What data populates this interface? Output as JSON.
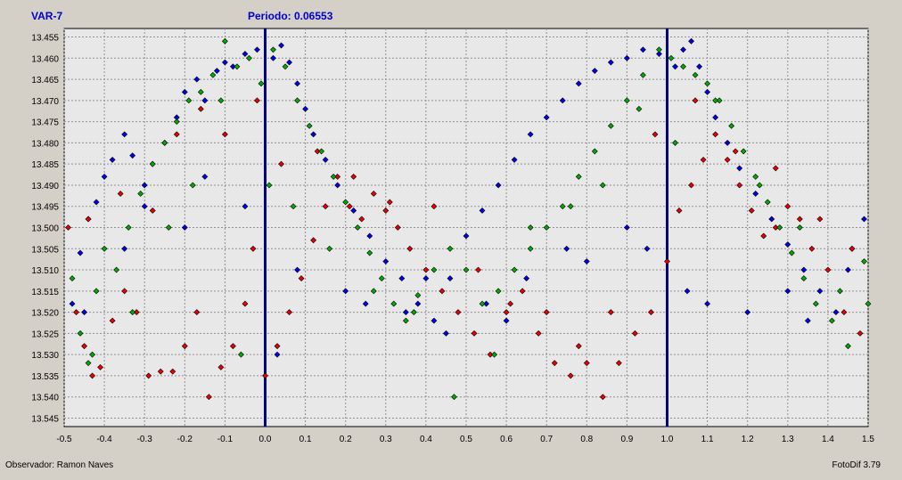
{
  "header": {
    "star_name": "VAR-7",
    "period_text": "Periodo: 0.06553"
  },
  "footer": {
    "observer_text": "Observador: Ramon Naves",
    "software_text": "FotoDif 3.79"
  },
  "chart_data": {
    "type": "scatter",
    "title": "",
    "xlabel": "",
    "ylabel": "",
    "xlim": [
      -0.5,
      1.5
    ],
    "ylim": [
      13.547,
      13.453
    ],
    "y_inverted": true,
    "grid": true,
    "x_ticks": [
      -0.5,
      -0.4,
      -0.3,
      -0.2,
      -0.1,
      0.0,
      0.1,
      0.2,
      0.3,
      0.4,
      0.5,
      0.6,
      0.7,
      0.8,
      0.9,
      1.0,
      1.1,
      1.2,
      1.3,
      1.4,
      1.5
    ],
    "x_tick_labels": [
      "-0.5",
      "-0.4",
      "-0.3",
      "-0.2",
      "-0.1",
      "0.0",
      "0.1",
      "0.2",
      "0.3",
      "0.4",
      "0.5",
      "0.6",
      "0.7",
      "0.8",
      "0.9",
      "1.0",
      "1.1",
      "1.2",
      "1.3",
      "1.4",
      "1.5"
    ],
    "y_ticks": [
      13.455,
      13.46,
      13.465,
      13.47,
      13.475,
      13.48,
      13.485,
      13.49,
      13.495,
      13.5,
      13.505,
      13.51,
      13.515,
      13.52,
      13.525,
      13.53,
      13.535,
      13.54,
      13.545
    ],
    "y_tick_labels": [
      "13.455",
      "13.460",
      "13.465",
      "13.470",
      "13.475",
      "13.480",
      "13.485",
      "13.490",
      "13.495",
      "13.500",
      "13.505",
      "13.510",
      "13.515",
      "13.520",
      "13.525",
      "13.530",
      "13.535",
      "13.540",
      "13.545"
    ],
    "vlines": [
      0.0,
      1.0
    ],
    "colors": {
      "background": "#d4d0c8",
      "plot_bg": "#e8e8e8",
      "grid": "#909090",
      "vline": "#000080",
      "title": "#0000cc"
    },
    "series": [
      {
        "color": "#0000ee",
        "x": [
          -0.48,
          -0.46,
          -0.44,
          -0.42,
          -0.4,
          -0.38,
          -0.35,
          -0.33,
          -0.3,
          -0.28,
          -0.25,
          -0.22,
          -0.2,
          -0.17,
          -0.15,
          -0.12,
          -0.1,
          -0.08,
          -0.05,
          -0.02,
          0.02,
          0.04,
          0.06,
          0.08,
          0.1,
          0.12,
          0.15,
          0.18,
          0.22,
          0.26,
          0.3,
          0.34,
          0.38,
          0.42,
          0.46,
          0.5,
          0.54,
          0.58,
          0.62,
          0.66,
          0.7,
          0.74,
          0.78,
          0.82,
          0.86,
          0.9,
          0.94,
          0.98,
          1.02,
          1.04,
          1.06,
          1.08,
          1.1,
          1.12,
          1.15,
          1.18,
          1.22,
          1.26,
          1.3,
          1.34,
          1.38,
          1.42,
          1.46,
          1.49,
          -0.45,
          -0.3,
          -0.15,
          0.03,
          0.2,
          0.35,
          0.45,
          0.55,
          0.65,
          0.8,
          0.95,
          1.05,
          1.2,
          1.35,
          1.45,
          -0.35,
          -0.2,
          -0.05,
          0.08,
          0.25,
          0.4,
          0.6,
          0.75,
          0.9,
          1.1,
          1.3
        ],
        "y": [
          13.518,
          13.506,
          13.498,
          13.494,
          13.488,
          13.484,
          13.478,
          13.483,
          13.49,
          13.485,
          13.48,
          13.474,
          13.468,
          13.465,
          13.47,
          13.463,
          13.461,
          13.462,
          13.459,
          13.458,
          13.46,
          13.457,
          13.461,
          13.466,
          13.472,
          13.478,
          13.484,
          13.49,
          13.496,
          13.502,
          13.508,
          13.512,
          13.518,
          13.522,
          13.512,
          13.502,
          13.496,
          13.49,
          13.484,
          13.478,
          13.474,
          13.47,
          13.466,
          13.463,
          13.461,
          13.46,
          13.458,
          13.459,
          13.462,
          13.458,
          13.456,
          13.462,
          13.468,
          13.474,
          13.48,
          13.486,
          13.492,
          13.498,
          13.504,
          13.51,
          13.515,
          13.52,
          13.505,
          13.498,
          13.52,
          13.495,
          13.488,
          13.53,
          13.515,
          13.52,
          13.525,
          13.518,
          13.512,
          13.508,
          13.505,
          13.515,
          13.52,
          13.522,
          13.51,
          13.505,
          13.5,
          13.495,
          13.51,
          13.518,
          13.512,
          13.522,
          13.505,
          13.5,
          13.518,
          13.515
        ]
      },
      {
        "color": "#ee0000",
        "x": [
          -0.49,
          -0.47,
          -0.45,
          -0.43,
          -0.41,
          -0.38,
          -0.35,
          -0.32,
          -0.29,
          -0.26,
          -0.23,
          -0.2,
          -0.17,
          -0.14,
          -0.11,
          -0.08,
          -0.05,
          -0.03,
          0.0,
          0.03,
          0.06,
          0.09,
          0.12,
          0.15,
          0.18,
          0.21,
          0.24,
          0.27,
          0.3,
          0.33,
          0.36,
          0.4,
          0.44,
          0.48,
          0.52,
          0.56,
          0.6,
          0.64,
          0.68,
          0.72,
          0.76,
          0.8,
          0.84,
          0.88,
          0.92,
          0.96,
          1.0,
          1.03,
          1.06,
          1.09,
          1.12,
          1.15,
          1.18,
          1.21,
          1.24,
          1.27,
          1.3,
          1.33,
          1.36,
          1.4,
          1.44,
          1.48,
          -0.44,
          -0.36,
          -0.28,
          -0.22,
          -0.16,
          -0.1,
          -0.02,
          0.04,
          0.13,
          0.22,
          0.31,
          0.42,
          0.53,
          0.61,
          0.7,
          0.78,
          0.86,
          0.97,
          1.07,
          1.17,
          1.27,
          1.38,
          1.46
        ],
        "y": [
          13.5,
          13.52,
          13.528,
          13.535,
          13.533,
          13.522,
          13.515,
          13.52,
          13.535,
          13.534,
          13.534,
          13.528,
          13.52,
          13.54,
          13.533,
          13.528,
          13.518,
          13.505,
          13.535,
          13.528,
          13.52,
          13.512,
          13.503,
          13.495,
          13.488,
          13.495,
          13.498,
          13.492,
          13.496,
          13.5,
          13.505,
          13.51,
          13.515,
          13.52,
          13.525,
          13.53,
          13.52,
          13.515,
          13.525,
          13.532,
          13.535,
          13.532,
          13.54,
          13.532,
          13.525,
          13.52,
          13.508,
          13.496,
          13.49,
          13.484,
          13.478,
          13.484,
          13.49,
          13.496,
          13.502,
          13.5,
          13.495,
          13.498,
          13.505,
          13.51,
          13.52,
          13.525,
          13.498,
          13.492,
          13.496,
          13.478,
          13.472,
          13.478,
          13.47,
          13.485,
          13.482,
          13.488,
          13.494,
          13.495,
          13.51,
          13.518,
          13.52,
          13.528,
          13.52,
          13.478,
          13.47,
          13.482,
          13.486,
          13.498,
          13.505
        ]
      },
      {
        "color": "#00aa00",
        "x": [
          -0.48,
          -0.46,
          -0.44,
          -0.42,
          -0.4,
          -0.37,
          -0.34,
          -0.31,
          -0.28,
          -0.25,
          -0.22,
          -0.19,
          -0.16,
          -0.13,
          -0.1,
          -0.07,
          -0.04,
          -0.01,
          0.02,
          0.05,
          0.08,
          0.11,
          0.14,
          0.17,
          0.2,
          0.23,
          0.26,
          0.29,
          0.32,
          0.35,
          0.38,
          0.42,
          0.46,
          0.5,
          0.54,
          0.58,
          0.62,
          0.66,
          0.7,
          0.74,
          0.78,
          0.82,
          0.86,
          0.9,
          0.94,
          0.98,
          1.01,
          1.04,
          1.07,
          1.1,
          1.13,
          1.16,
          1.19,
          1.22,
          1.25,
          1.28,
          1.31,
          1.34,
          1.37,
          1.41,
          1.45,
          1.49,
          -0.43,
          -0.33,
          -0.24,
          -0.18,
          -0.11,
          -0.06,
          0.01,
          0.07,
          0.16,
          0.27,
          0.37,
          0.47,
          0.57,
          0.66,
          0.76,
          0.84,
          0.93,
          1.02,
          1.12,
          1.23,
          1.33,
          1.43,
          1.5
        ],
        "y": [
          13.512,
          13.525,
          13.532,
          13.515,
          13.505,
          13.51,
          13.5,
          13.492,
          13.485,
          13.48,
          13.475,
          13.47,
          13.468,
          13.464,
          13.456,
          13.462,
          13.46,
          13.466,
          13.458,
          13.462,
          13.47,
          13.476,
          13.482,
          13.488,
          13.494,
          13.5,
          13.506,
          13.512,
          13.518,
          13.522,
          13.516,
          13.51,
          13.505,
          13.51,
          13.518,
          13.515,
          13.51,
          13.505,
          13.5,
          13.495,
          13.488,
          13.482,
          13.476,
          13.47,
          13.464,
          13.458,
          13.46,
          13.462,
          13.464,
          13.466,
          13.47,
          13.476,
          13.482,
          13.488,
          13.494,
          13.5,
          13.506,
          13.512,
          13.518,
          13.522,
          13.528,
          13.508,
          13.53,
          13.52,
          13.5,
          13.49,
          13.47,
          13.53,
          13.49,
          13.495,
          13.505,
          13.515,
          13.52,
          13.54,
          13.53,
          13.5,
          13.495,
          13.49,
          13.472,
          13.48,
          13.47,
          13.49,
          13.5,
          13.515,
          13.518
        ]
      }
    ]
  }
}
